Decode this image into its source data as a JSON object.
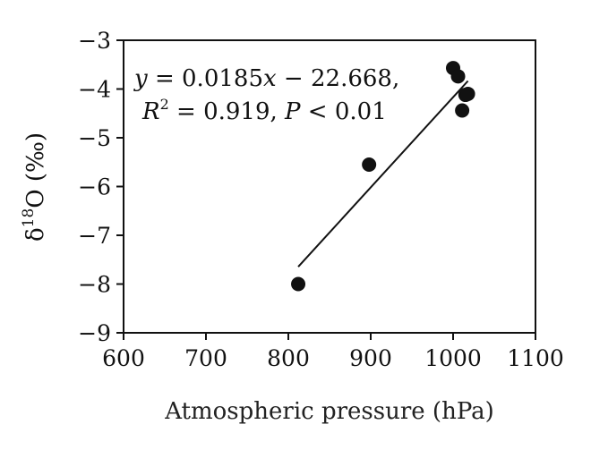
{
  "chart_data": {
    "type": "scatter",
    "title": "",
    "xlabel": "Atmospheric pressure (hPa)",
    "ylabel": {
      "symbol": "δ",
      "superscript": "18",
      "rest": "O (‰)"
    },
    "xlim": [
      600,
      1100
    ],
    "ylim": [
      -9,
      -3
    ],
    "x_ticks": [
      600,
      700,
      800,
      900,
      1000,
      1100
    ],
    "y_ticks": [
      -3,
      -4,
      -5,
      -6,
      -7,
      -8,
      -9
    ],
    "x_tick_labels": [
      "600",
      "700",
      "800",
      "900",
      "1000",
      "1100"
    ],
    "y_tick_labels": [
      "−3",
      "−4",
      "−5",
      "−6",
      "−7",
      "−8",
      "−9"
    ],
    "points": [
      {
        "x": 812,
        "y": -8.0
      },
      {
        "x": 898,
        "y": -5.55
      },
      {
        "x": 1000,
        "y": -3.57
      },
      {
        "x": 1006,
        "y": -3.74
      },
      {
        "x": 1011,
        "y": -4.44
      },
      {
        "x": 1015,
        "y": -4.12
      },
      {
        "x": 1018,
        "y": -4.1
      }
    ],
    "trendline": {
      "slope": 0.0185,
      "intercept": -22.668,
      "x_range": [
        812,
        1018
      ]
    },
    "annotation": {
      "line1": {
        "y": "y",
        "eq": " = 0.0185",
        "x": "x",
        "rest": " − 22.668,"
      },
      "line2": {
        "r": "R",
        "sup": "2",
        "mid": " = 0.919, ",
        "p": "P",
        "tail": " < 0.01"
      }
    },
    "grid": false,
    "legend": "none",
    "colors": {
      "marker": "#111111",
      "line": "#111111",
      "axis": "#111111"
    }
  }
}
